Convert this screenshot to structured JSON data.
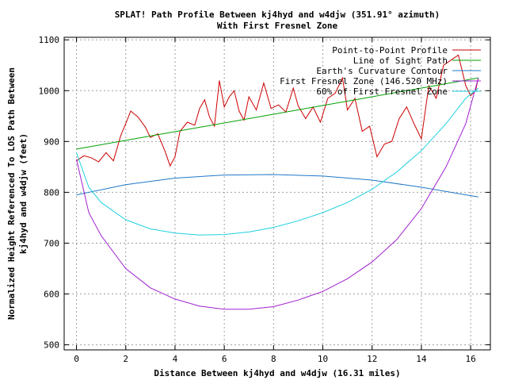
{
  "chart_data": {
    "type": "line",
    "title_line1": "SPLAT! Path Profile Between kj4hyd and w4djw (351.91° azimuth)",
    "title_line2": "With First Fresnel Zone",
    "xlabel": "Distance Between kj4hyd and w4djw (16.31 miles)",
    "ylabel_line1": "Normalized Height Referenced To LOS Path Between",
    "ylabel_line2": "kj4hyd and w4djw (feet)",
    "xlim": [
      -0.5,
      16.8
    ],
    "ylim": [
      490,
      1105
    ],
    "xticks": [
      0,
      2,
      4,
      6,
      8,
      10,
      12,
      14,
      16
    ],
    "yticks": [
      500,
      600,
      700,
      800,
      900,
      1000,
      1100
    ],
    "grid": true,
    "legend_position": "top-right",
    "colors": {
      "profile": "#cc0000",
      "line_of_sight": "#00a000",
      "curvature": "#1f78c8",
      "fresnel": "#a020d0",
      "fresnel60": "#20d0e0"
    },
    "series": [
      {
        "name": "Point-to-Point Profile",
        "key": "profile",
        "x": [
          0,
          0.3,
          0.6,
          0.9,
          1.2,
          1.5,
          1.8,
          2.0,
          2.2,
          2.5,
          2.8,
          3.0,
          3.3,
          3.6,
          3.8,
          4.0,
          4.2,
          4.5,
          4.8,
          5.0,
          5.2,
          5.4,
          5.6,
          5.8,
          6.0,
          6.2,
          6.4,
          6.6,
          6.8,
          7.0,
          7.3,
          7.6,
          7.9,
          8.2,
          8.5,
          8.8,
          9.0,
          9.3,
          9.6,
          9.9,
          10.2,
          10.5,
          10.8,
          11.0,
          11.3,
          11.6,
          11.9,
          12.2,
          12.5,
          12.8,
          13.1,
          13.4,
          13.7,
          14.0,
          14.3,
          14.6,
          14.9,
          15.2,
          15.5,
          15.8,
          16.0,
          16.2,
          16.31
        ],
        "y": [
          862,
          872,
          868,
          860,
          878,
          862,
          912,
          935,
          960,
          948,
          928,
          908,
          915,
          880,
          852,
          870,
          920,
          938,
          932,
          965,
          982,
          948,
          930,
          1020,
          968,
          988,
          1000,
          960,
          942,
          988,
          962,
          1015,
          965,
          972,
          958,
          1005,
          970,
          945,
          968,
          938,
          985,
          995,
          1025,
          962,
          985,
          920,
          930,
          870,
          895,
          900,
          945,
          968,
          935,
          905,
          1010,
          985,
          1050,
          1060,
          1070,
          1010,
          990,
          1000,
          1025
        ]
      },
      {
        "name": "Line of Sight Path",
        "key": "line_of_sight",
        "x": [
          0,
          16.31
        ],
        "y": [
          885,
          1025
        ]
      },
      {
        "name": "Earth's Curvature Contour",
        "key": "curvature",
        "x": [
          0,
          2,
          4,
          6,
          8,
          10,
          12,
          14,
          16.31
        ],
        "y": [
          795,
          815,
          828,
          834,
          835,
          832,
          824,
          810,
          791
        ]
      },
      {
        "name": "First Fresnel Zone (146.520 MHz)",
        "key": "fresnel",
        "x": [
          0,
          0.5,
          1,
          2,
          3,
          4,
          5,
          6,
          7,
          8,
          9,
          10,
          11,
          12,
          13,
          14,
          15,
          15.8,
          16.31
        ],
        "y": [
          865,
          760,
          715,
          650,
          612,
          590,
          576,
          570,
          570,
          575,
          588,
          605,
          630,
          663,
          707,
          768,
          850,
          935,
          1025
        ]
      },
      {
        "name": "60% of First Fresnel Zone",
        "key": "fresnel60",
        "x": [
          0,
          0.5,
          1,
          2,
          3,
          4,
          5,
          6,
          7,
          8,
          9,
          10,
          11,
          12,
          13,
          14,
          15,
          15.8,
          16.31
        ],
        "y": [
          878,
          810,
          780,
          746,
          728,
          720,
          716,
          717,
          722,
          731,
          744,
          760,
          780,
          806,
          840,
          882,
          935,
          985,
          1005
        ]
      }
    ]
  }
}
